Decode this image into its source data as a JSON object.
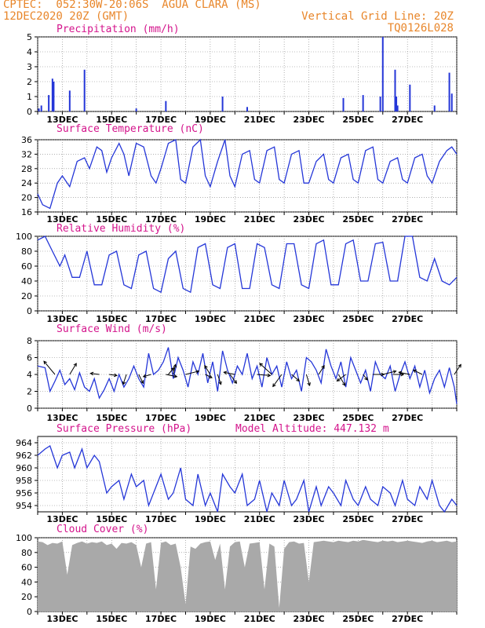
{
  "header": {
    "line1_left": "CPTEC:  052:30W-20:06S  AGUA CLARA (MS)",
    "line2_left": "12DEC2020 20Z (GMT)",
    "line1_right": "Vertical Grid Line: 20Z",
    "line2_right": "TQ0126L028"
  },
  "colors": {
    "header": "#e8862a",
    "title": "#d4148c",
    "series": "#2436d8",
    "cloud": "#a9a9a9",
    "grid": "#808080"
  },
  "chart_data": [
    {
      "type": "bar",
      "title": "Precipitation (mm/h)",
      "ylim": [
        0,
        5
      ],
      "yticks": [
        0,
        1,
        2,
        3,
        4,
        5
      ],
      "xlabels": [
        "13DEC",
        "15DEC",
        "17DEC",
        "19DEC",
        "21DEC",
        "23DEC",
        "25DEC",
        "27DEC"
      ],
      "x_days": [
        0.05,
        0.15,
        0.45,
        0.6,
        0.65,
        1.3,
        1.9,
        4.0,
        5.2,
        7.5,
        8.5,
        12.4,
        13.2,
        13.9,
        14.0,
        14.5,
        14.55,
        14.6,
        15.1,
        16.1,
        16.7,
        16.8
      ],
      "values": [
        0.2,
        0.4,
        1.1,
        2.2,
        2.0,
        1.4,
        2.8,
        0.2,
        0.7,
        1.0,
        0.3,
        0.9,
        1.1,
        1.0,
        5.0,
        2.8,
        1.0,
        0.4,
        1.8,
        0.4,
        2.6,
        1.2
      ]
    },
    {
      "type": "line",
      "title": "Surface Temperature (nC)",
      "ylim": [
        16,
        36
      ],
      "yticks": [
        16,
        20,
        24,
        28,
        32,
        36
      ],
      "xlabels": [
        "13DEC",
        "15DEC",
        "17DEC",
        "19DEC",
        "21DEC",
        "23DEC",
        "25DEC",
        "27DEC"
      ],
      "x_days": [
        0.0,
        0.2,
        0.5,
        0.8,
        1.0,
        1.3,
        1.6,
        1.9,
        2.1,
        2.4,
        2.6,
        2.8,
        3.0,
        3.3,
        3.5,
        3.7,
        4.0,
        4.3,
        4.6,
        4.8,
        5.0,
        5.3,
        5.6,
        5.8,
        6.0,
        6.3,
        6.6,
        6.8,
        7.0,
        7.3,
        7.6,
        7.8,
        8.0,
        8.3,
        8.6,
        8.8,
        9.0,
        9.3,
        9.6,
        9.8,
        10.0,
        10.3,
        10.6,
        10.8,
        11.0,
        11.3,
        11.6,
        11.8,
        12.0,
        12.3,
        12.6,
        12.8,
        13.0,
        13.3,
        13.6,
        13.8,
        14.0,
        14.3,
        14.6,
        14.8,
        15.0,
        15.3,
        15.6,
        15.8,
        16.0,
        16.3,
        16.6,
        16.8,
        17.0
      ],
      "values": [
        21,
        18,
        17,
        24,
        26,
        23,
        30,
        31,
        28,
        34,
        33,
        27,
        31,
        35,
        32,
        26,
        35,
        34,
        26,
        24,
        28,
        35,
        36,
        25,
        24,
        34,
        36,
        26,
        23,
        30,
        36,
        26,
        23,
        32,
        33,
        25,
        24,
        33,
        34,
        25,
        24,
        32,
        33,
        24,
        24,
        30,
        32,
        25,
        24,
        31,
        32,
        25,
        24,
        33,
        34,
        25,
        24,
        30,
        31,
        25,
        24,
        31,
        32,
        26,
        24,
        30,
        33,
        34,
        32
      ]
    },
    {
      "type": "line",
      "title": "Relative Humidity (%)",
      "ylim": [
        0,
        100
      ],
      "yticks": [
        0,
        20,
        40,
        60,
        80,
        100
      ],
      "xlabels": [
        "13DEC",
        "15DEC",
        "17DEC",
        "19DEC",
        "21DEC",
        "23DEC",
        "25DEC",
        "27DEC"
      ],
      "x_days": [
        0.0,
        0.3,
        0.6,
        0.9,
        1.1,
        1.4,
        1.7,
        2.0,
        2.3,
        2.6,
        2.9,
        3.2,
        3.5,
        3.8,
        4.1,
        4.4,
        4.7,
        5.0,
        5.3,
        5.6,
        5.9,
        6.2,
        6.5,
        6.8,
        7.1,
        7.4,
        7.7,
        8.0,
        8.3,
        8.6,
        8.9,
        9.2,
        9.5,
        9.8,
        10.1,
        10.4,
        10.7,
        11.0,
        11.3,
        11.6,
        11.9,
        12.2,
        12.5,
        12.8,
        13.1,
        13.4,
        13.7,
        14.0,
        14.3,
        14.6,
        14.9,
        15.2,
        15.5,
        15.8,
        16.1,
        16.4,
        16.7,
        17.0
      ],
      "values": [
        95,
        100,
        80,
        60,
        75,
        45,
        45,
        80,
        35,
        35,
        75,
        80,
        35,
        30,
        75,
        80,
        30,
        25,
        70,
        80,
        30,
        25,
        85,
        90,
        35,
        30,
        85,
        90,
        30,
        30,
        90,
        85,
        35,
        30,
        90,
        90,
        35,
        30,
        90,
        95,
        35,
        35,
        90,
        95,
        40,
        40,
        90,
        92,
        40,
        40,
        100,
        100,
        45,
        40,
        70,
        40,
        35,
        45
      ]
    },
    {
      "type": "line",
      "title": "Surface Wind (m/s)",
      "ylim": [
        0,
        8
      ],
      "yticks": [
        0,
        2,
        4,
        6,
        8
      ],
      "xlabels": [
        "13DEC",
        "15DEC",
        "17DEC",
        "19DEC",
        "21DEC",
        "23DEC",
        "25DEC",
        "27DEC"
      ],
      "x_days": [
        0.0,
        0.3,
        0.5,
        0.7,
        0.9,
        1.1,
        1.3,
        1.5,
        1.7,
        1.9,
        2.1,
        2.3,
        2.5,
        2.7,
        2.9,
        3.1,
        3.3,
        3.5,
        3.7,
        3.9,
        4.1,
        4.3,
        4.5,
        4.7,
        4.9,
        5.1,
        5.3,
        5.5,
        5.7,
        5.9,
        6.1,
        6.3,
        6.5,
        6.7,
        6.9,
        7.1,
        7.3,
        7.5,
        7.7,
        7.9,
        8.1,
        8.3,
        8.5,
        8.7,
        8.9,
        9.1,
        9.3,
        9.5,
        9.7,
        9.9,
        10.1,
        10.3,
        10.5,
        10.7,
        10.9,
        11.1,
        11.3,
        11.5,
        11.7,
        11.9,
        12.1,
        12.3,
        12.5,
        12.7,
        12.9,
        13.1,
        13.3,
        13.5,
        13.7,
        13.9,
        14.1,
        14.3,
        14.5,
        14.7,
        14.9,
        15.1,
        15.3,
        15.5,
        15.7,
        15.9,
        16.1,
        16.3,
        16.5,
        16.7,
        16.9,
        17.0
      ],
      "values": [
        5.0,
        4.8,
        2.0,
        3.2,
        4.5,
        2.8,
        3.5,
        2.2,
        4.2,
        2.5,
        2.0,
        3.5,
        1.2,
        2.2,
        3.5,
        2.0,
        4.0,
        2.5,
        3.5,
        5.0,
        3.5,
        2.5,
        6.5,
        4.0,
        4.5,
        5.5,
        7.2,
        3.5,
        6.0,
        4.5,
        2.5,
        5.5,
        4.0,
        6.5,
        3.0,
        5.5,
        2.0,
        6.8,
        4.5,
        3.0,
        5.0,
        4.0,
        6.5,
        3.5,
        5.0,
        2.5,
        6.0,
        4.0,
        5.0,
        2.5,
        5.5,
        3.5,
        4.5,
        2.0,
        6.0,
        5.5,
        4.5,
        3.0,
        7.0,
        5.0,
        3.5,
        5.5,
        2.5,
        6.0,
        4.5,
        3.0,
        4.5,
        2.0,
        5.5,
        4.0,
        3.5,
        5.0,
        2.0,
        4.0,
        5.5,
        3.5,
        5.0,
        2.5,
        4.5,
        1.8,
        3.5,
        4.5,
        2.5,
        4.8,
        2.5,
        0.5
      ]
    },
    {
      "type": "line",
      "title": "Surface Pressure (hPa)",
      "annotation": "Model Altitude: 447.132 m",
      "ylim": [
        953,
        965
      ],
      "yticks": [
        954,
        956,
        958,
        960,
        962,
        964
      ],
      "xlabels": [
        "13DEC",
        "15DEC",
        "17DEC",
        "19DEC",
        "21DEC",
        "23DEC",
        "25DEC",
        "27DEC"
      ],
      "x_days": [
        0.0,
        0.3,
        0.5,
        0.8,
        1.0,
        1.3,
        1.5,
        1.8,
        2.0,
        2.3,
        2.5,
        2.8,
        3.0,
        3.3,
        3.5,
        3.8,
        4.0,
        4.3,
        4.5,
        4.8,
        5.0,
        5.3,
        5.5,
        5.8,
        6.0,
        6.3,
        6.5,
        6.8,
        7.0,
        7.3,
        7.5,
        7.8,
        8.0,
        8.3,
        8.5,
        8.8,
        9.0,
        9.3,
        9.5,
        9.8,
        10.0,
        10.3,
        10.5,
        10.8,
        11.0,
        11.3,
        11.5,
        11.8,
        12.0,
        12.3,
        12.5,
        12.8,
        13.0,
        13.3,
        13.5,
        13.8,
        14.0,
        14.3,
        14.5,
        14.8,
        15.0,
        15.3,
        15.5,
        15.8,
        16.0,
        16.3,
        16.5,
        16.8,
        17.0
      ],
      "values": [
        962,
        963,
        963.5,
        960,
        962,
        962.5,
        960,
        963,
        960,
        962,
        961,
        956,
        957,
        958,
        955,
        959,
        957,
        958,
        954,
        957,
        959,
        955,
        956,
        960,
        955,
        954,
        959,
        954,
        956,
        953,
        959,
        957,
        956,
        959,
        954,
        955,
        958,
        953,
        956,
        954,
        958,
        954,
        955,
        958,
        953,
        957,
        954,
        957,
        956,
        954,
        958,
        955,
        954,
        957,
        955,
        954,
        957,
        956,
        954,
        958,
        955,
        954,
        957,
        955,
        958,
        954,
        953,
        955,
        954
      ]
    },
    {
      "type": "area",
      "title": "Cloud Cover (%)",
      "ylim": [
        0,
        100
      ],
      "yticks": [
        0,
        20,
        40,
        60,
        80,
        100
      ],
      "xlabels": [
        "13DEC",
        "15DEC",
        "17DEC",
        "19DEC",
        "21DEC",
        "23DEC",
        "25DEC",
        "27DEC"
      ],
      "x_days": [
        0.0,
        0.2,
        0.4,
        0.6,
        0.8,
        1.0,
        1.2,
        1.4,
        1.6,
        1.8,
        2.0,
        2.2,
        2.4,
        2.6,
        2.8,
        3.0,
        3.2,
        3.4,
        3.6,
        3.8,
        4.0,
        4.2,
        4.4,
        4.6,
        4.8,
        5.0,
        5.2,
        5.4,
        5.6,
        5.8,
        6.0,
        6.2,
        6.4,
        6.6,
        6.8,
        7.0,
        7.2,
        7.4,
        7.6,
        7.8,
        8.0,
        8.2,
        8.4,
        8.6,
        8.8,
        9.0,
        9.2,
        9.4,
        9.6,
        9.8,
        10.0,
        10.2,
        10.4,
        10.6,
        10.8,
        11.0,
        11.2,
        11.4,
        11.6,
        11.8,
        12.0,
        12.2,
        12.4,
        12.6,
        12.8,
        13.0,
        13.2,
        13.4,
        13.6,
        13.8,
        14.0,
        14.2,
        14.4,
        14.6,
        14.8,
        15.0,
        15.2,
        15.4,
        15.6,
        15.8,
        16.0,
        16.2,
        16.4,
        16.6,
        16.8,
        17.0
      ],
      "values": [
        95,
        94,
        90,
        93,
        92,
        95,
        50,
        90,
        93,
        95,
        92,
        94,
        93,
        95,
        90,
        92,
        85,
        93,
        92,
        94,
        90,
        60,
        92,
        94,
        30,
        93,
        95,
        90,
        92,
        60,
        10,
        88,
        85,
        92,
        94,
        95,
        70,
        92,
        30,
        88,
        94,
        95,
        60,
        92,
        93,
        94,
        30,
        92,
        88,
        5,
        85,
        94,
        95,
        92,
        93,
        40,
        94,
        95,
        96,
        95,
        94,
        96,
        95,
        94,
        96,
        95,
        97,
        96,
        95,
        94,
        96,
        95,
        96,
        94,
        95,
        96,
        95,
        94,
        93,
        95,
        96,
        94,
        95,
        96,
        94,
        95
      ]
    }
  ],
  "wind_arrows": {
    "x_days": [
      0.7,
      1.3,
      2.5,
      2.9,
      3.6,
      4.1,
      4.6,
      5.2,
      5.3,
      5.5,
      6.0,
      6.8,
      7.0,
      7.3,
      7.8,
      8.0,
      8.9,
      9.5,
      9.9,
      10.3,
      10.9,
      11.4,
      12.2,
      12.5,
      13.2,
      13.6,
      14.0,
      14.4,
      15.1,
      15.6,
      16.9
    ],
    "u": [
      -1.0,
      0.6,
      -0.8,
      0.7,
      -0.3,
      0.4,
      -0.7,
      1.0,
      0.5,
      0.2,
      1.2,
      0.6,
      -0.5,
      0.3,
      0.6,
      -1.0,
      1.2,
      -1.1,
      -0.8,
      0.7,
      0.3,
      0.5,
      0.6,
      -0.8,
      0.4,
      1.0,
      1.2,
      1.0,
      -1.0,
      -0.8,
      0.6
    ],
    "v": [
      1.2,
      1.0,
      0.1,
      -0.1,
      -0.9,
      -0.8,
      -0.2,
      -0.2,
      0.6,
      0.9,
      0.3,
      -0.3,
      0.8,
      -0.9,
      -0.8,
      0.2,
      -0.1,
      1.0,
      -1.1,
      -0.6,
      -1.0,
      0.8,
      -1.0,
      -0.6,
      -0.5,
      0.0,
      0.3,
      0.0,
      0.2,
      0.4,
      0.9
    ]
  }
}
